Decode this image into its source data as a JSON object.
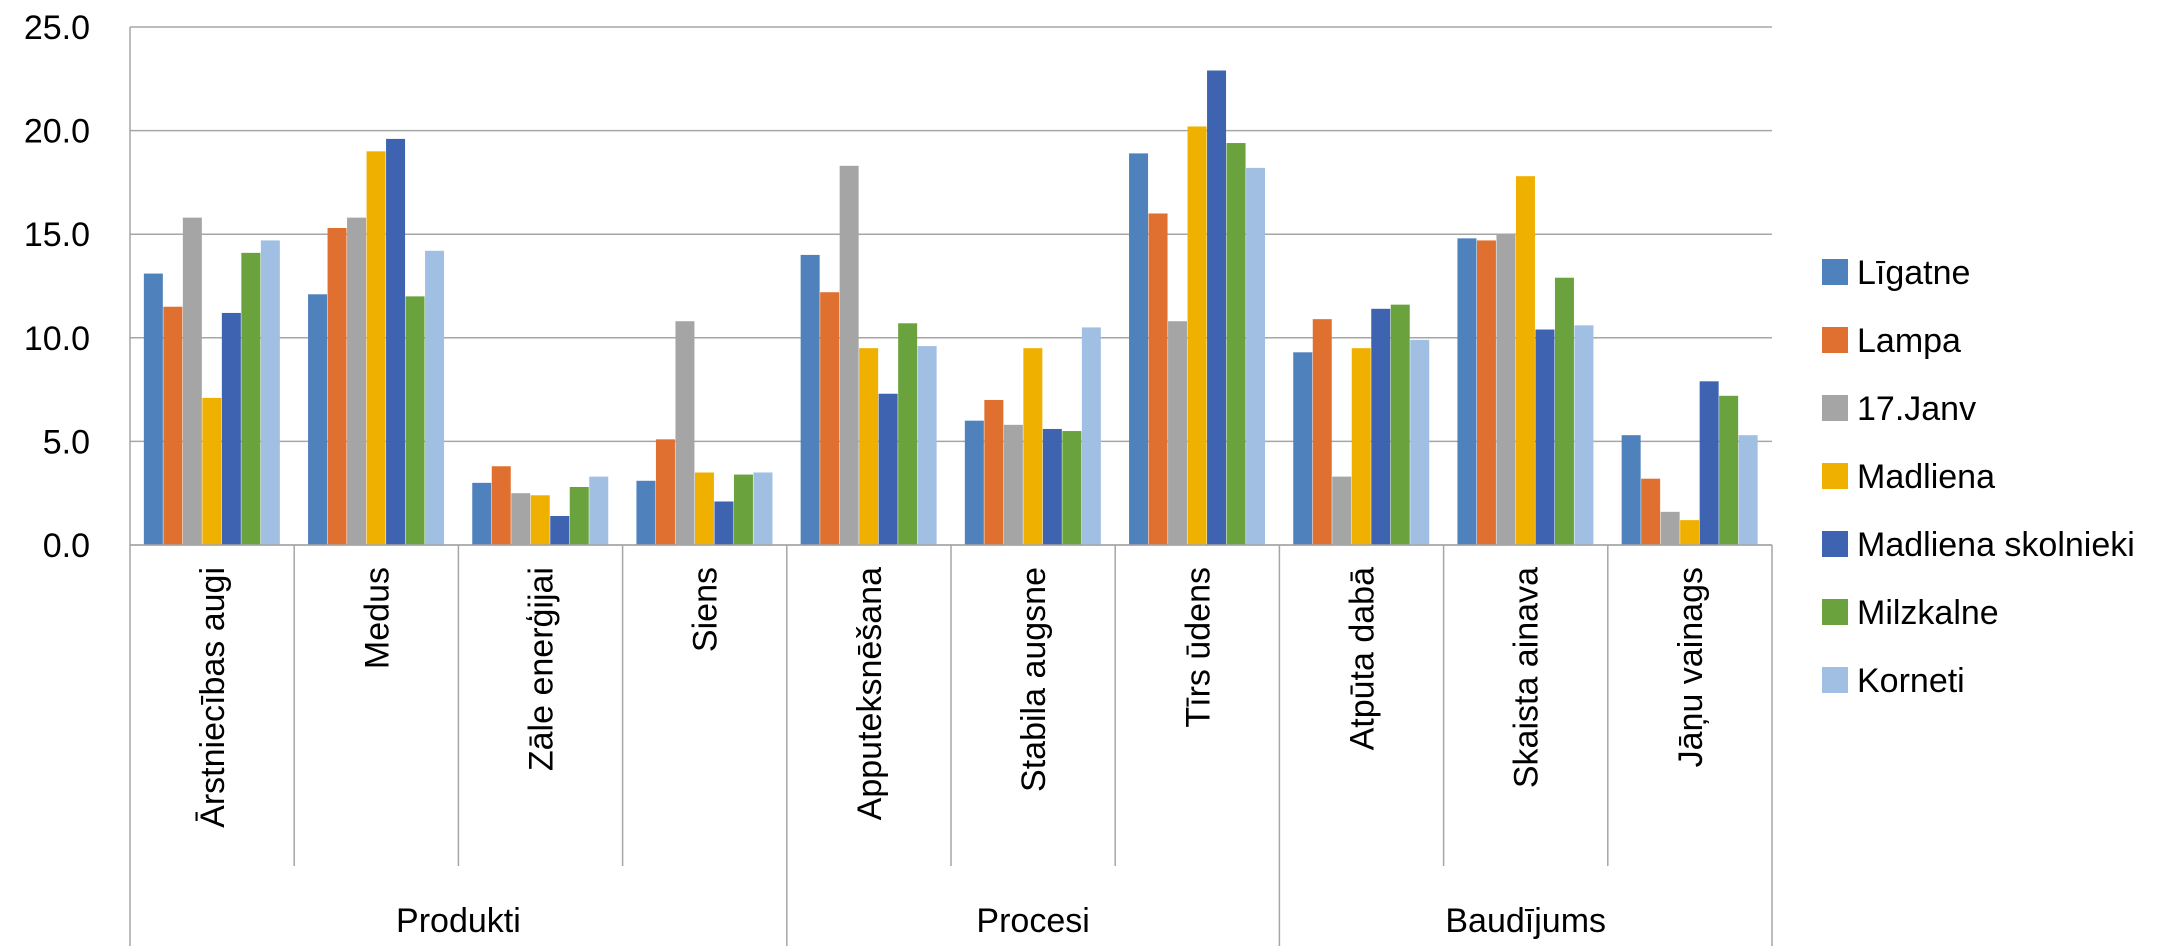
{
  "chart_data": {
    "type": "bar",
    "title": "",
    "xlabel": "",
    "ylabel": "",
    "ylim": [
      0,
      25
    ],
    "yticks": [
      "0.0",
      "5.0",
      "10.0",
      "15.0",
      "20.0",
      "25.0"
    ],
    "grid": true,
    "legend_position": "right",
    "categories": [
      "Ārstniecības augi",
      "Medus",
      "Zāle enerģijai",
      "Siens",
      "Apputeksnēšana",
      "Stabila augsne",
      "Tīrs ūdens",
      "Atpūta dabā",
      "Skaista ainava",
      "Jāņu vainags"
    ],
    "groups": [
      {
        "label": "Produkti",
        "count": 4
      },
      {
        "label": "Procesi",
        "count": 3
      },
      {
        "label": "Baudījums",
        "count": 3
      }
    ],
    "series": [
      {
        "name": "Līgatne",
        "color": "#4F81BD",
        "values": [
          13.1,
          12.1,
          3.0,
          3.1,
          14.0,
          6.0,
          18.9,
          9.3,
          14.8,
          5.3
        ]
      },
      {
        "name": "Lampa",
        "color": "#E07030",
        "values": [
          11.5,
          15.3,
          3.8,
          5.1,
          12.2,
          7.0,
          16.0,
          10.9,
          14.7,
          3.2
        ]
      },
      {
        "name": "17.Janv",
        "color": "#A5A5A5",
        "values": [
          15.8,
          15.8,
          2.5,
          10.8,
          18.3,
          5.8,
          10.8,
          3.3,
          15.0,
          1.6
        ]
      },
      {
        "name": "Madliena",
        "color": "#F0B000",
        "values": [
          7.1,
          19.0,
          2.4,
          3.5,
          9.5,
          9.5,
          20.2,
          9.5,
          17.8,
          1.2
        ]
      },
      {
        "name": "Madliena skolnieki",
        "color": "#3E63B0",
        "values": [
          11.2,
          19.6,
          1.4,
          2.1,
          7.3,
          5.6,
          22.9,
          11.4,
          10.4,
          7.9
        ]
      },
      {
        "name": "Milzkalne",
        "color": "#6AA33D",
        "values": [
          14.1,
          12.0,
          2.8,
          3.4,
          10.7,
          5.5,
          19.4,
          11.6,
          12.9,
          7.2
        ]
      },
      {
        "name": "Korneti",
        "color": "#A1BFE3",
        "values": [
          14.7,
          14.2,
          3.3,
          3.5,
          9.6,
          10.5,
          18.2,
          9.9,
          10.6,
          5.3
        ]
      }
    ]
  }
}
